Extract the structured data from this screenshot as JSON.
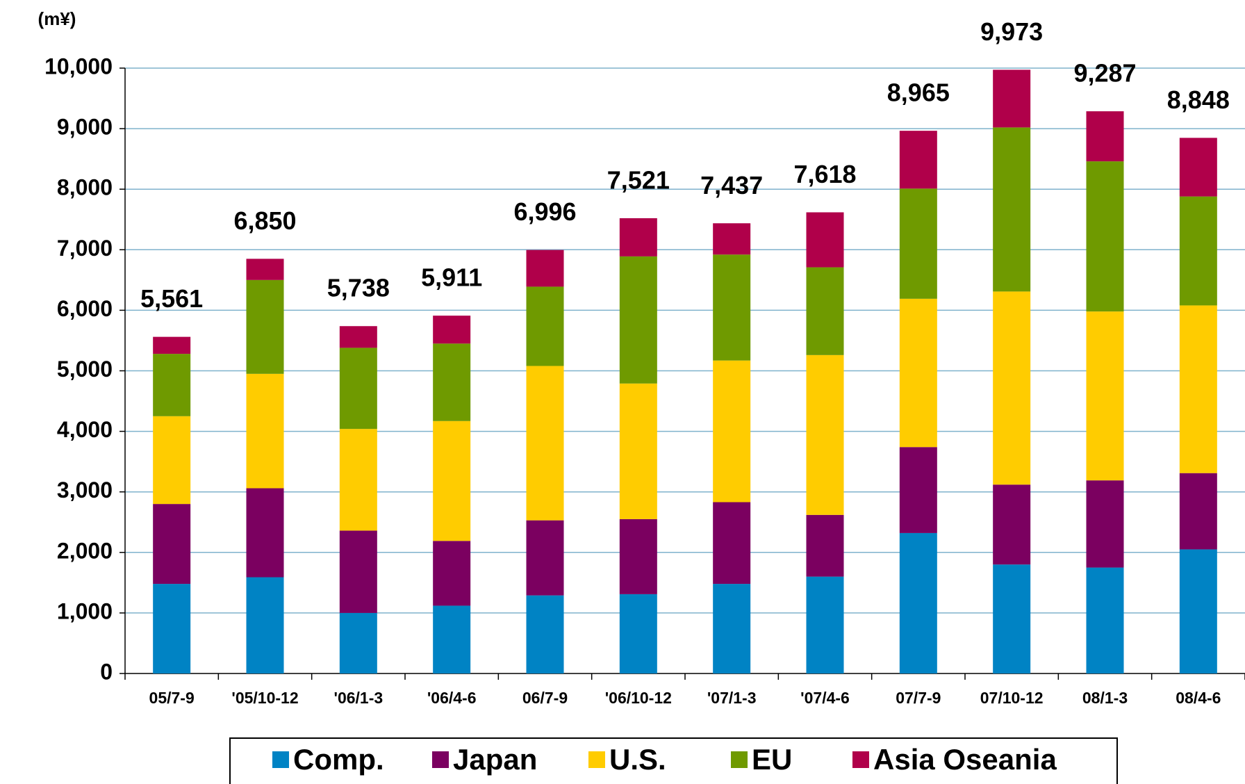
{
  "chart_data": {
    "type": "stacked_bar",
    "y_axis_label": "(m¥)",
    "categories": [
      "05/7-9",
      "'05/10-12",
      "'06/1-3",
      "'06/4-6",
      "06/7-9",
      "'06/10-12",
      "'07/1-3",
      "'07/4-6",
      "07/7-9",
      "07/10-12",
      "08/1-3",
      "08/4-6"
    ],
    "series": [
      {
        "name": "Comp.",
        "color": "#0083c4",
        "values": [
          1480,
          1590,
          1000,
          1120,
          1290,
          1310,
          1480,
          1600,
          2320,
          1800,
          1750,
          2050
        ]
      },
      {
        "name": "Japan",
        "color": "#7b0060",
        "values": [
          1320,
          1470,
          1360,
          1070,
          1240,
          1240,
          1350,
          1020,
          1420,
          1320,
          1440,
          1260
        ]
      },
      {
        "name": "U.S.",
        "color": "#ffcc00",
        "values": [
          1450,
          1890,
          1680,
          1980,
          2550,
          2240,
          2340,
          2640,
          2450,
          3190,
          2790,
          2770
        ]
      },
      {
        "name": "EU",
        "color": "#6f9a00",
        "values": [
          1030,
          1550,
          1340,
          1280,
          1310,
          2100,
          1750,
          1450,
          1820,
          2710,
          2480,
          1800
        ]
      },
      {
        "name": "Asia Oseania",
        "color": "#b0004a",
        "values": [
          281,
          350,
          358,
          461,
          606,
          631,
          517,
          908,
          955,
          953,
          827,
          968
        ]
      }
    ],
    "totals": [
      5561,
      6850,
      5738,
      5911,
      6996,
      7521,
      7437,
      7618,
      8965,
      9973,
      9287,
      8848
    ],
    "total_labels": [
      "5,561",
      "6,850",
      "5,738",
      "5,911",
      "6,996",
      "7,521",
      "7,437",
      "7,618",
      "8,965",
      "9,973",
      "9,287",
      "8,848"
    ],
    "ylim": [
      0,
      10000
    ],
    "yticks": [
      0,
      {
        "value": 1000,
        "label": "1,000"
      },
      {
        "value": 2000,
        "label": "2,000"
      },
      {
        "value": 3000,
        "label": "3,000"
      },
      {
        "value": 4000,
        "label": "4,000"
      },
      {
        "value": 5000,
        "label": "5,000"
      },
      {
        "value": 6000,
        "label": "6,000"
      },
      {
        "value": 7000,
        "label": "7,000"
      },
      {
        "value": 8000,
        "label": "8,000"
      },
      {
        "value": 9000,
        "label": "9,000"
      },
      {
        "value": 10000,
        "label": "10,000"
      }
    ],
    "grid": true,
    "legend": "bottom"
  }
}
